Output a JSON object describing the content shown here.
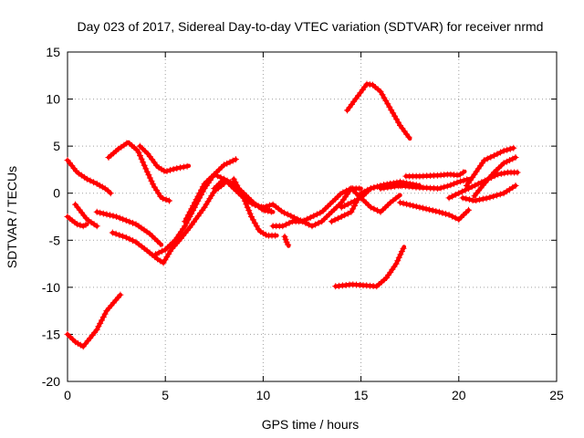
{
  "chart_data": {
    "type": "scatter",
    "title": "Day 023 of 2017, Sidereal Day-to-day VTEC variation (SDTVAR) for receiver nrmd",
    "xlabel": "GPS time / hours",
    "ylabel": "SDTVAR / TECUs",
    "xlim": [
      0,
      25
    ],
    "ylim": [
      -20,
      15
    ],
    "xticks": [
      0,
      5,
      10,
      15,
      20,
      25
    ],
    "yticks": [
      -20,
      -15,
      -10,
      -5,
      0,
      5,
      10,
      15
    ],
    "grid": true,
    "legend": "none",
    "color": "#ff0000",
    "marker": "plus",
    "series": [
      {
        "name": "arc1",
        "x": [
          0,
          0.5,
          1,
          1.5,
          2,
          2.2
        ],
        "y": [
          3.5,
          2.2,
          1.5,
          1.0,
          0.4,
          0
        ]
      },
      {
        "name": "arc2",
        "x": [
          0,
          0.3,
          0.5,
          0.8,
          1.0
        ],
        "y": [
          -2.5,
          -3.0,
          -3.3,
          -3.5,
          -3.3
        ]
      },
      {
        "name": "arc3",
        "x": [
          0,
          0.4,
          0.8,
          1.5,
          2.0,
          2.7
        ],
        "y": [
          -15,
          -15.8,
          -16.3,
          -14.5,
          -12.5,
          -10.8
        ]
      },
      {
        "name": "arc4",
        "x": [
          0.4,
          1.0,
          1.5
        ],
        "y": [
          -1.2,
          -2.8,
          -3.5
        ]
      },
      {
        "name": "arc5",
        "x": [
          1.5,
          2.5,
          3.5,
          4.2,
          4.8
        ],
        "y": [
          -2.0,
          -2.5,
          -3.3,
          -4.3,
          -5.5
        ]
      },
      {
        "name": "arc6",
        "x": [
          2.1,
          2.6,
          3.1,
          3.6,
          4.0,
          4.4,
          4.8,
          5.2
        ],
        "y": [
          3.8,
          4.7,
          5.4,
          4.5,
          2.6,
          0.8,
          -0.5,
          -0.8
        ]
      },
      {
        "name": "arc7",
        "x": [
          3.7,
          4.1,
          4.6,
          5.0,
          5.5,
          6.2
        ],
        "y": [
          5.0,
          4.2,
          2.8,
          2.3,
          2.6,
          2.9
        ]
      },
      {
        "name": "arc8",
        "x": [
          2.3,
          3.0,
          3.5,
          4.0,
          4.6,
          4.9,
          5.3,
          5.8,
          6.3,
          7.0,
          7.5,
          8.0
        ],
        "y": [
          -4.2,
          -4.7,
          -5.2,
          -6.0,
          -7.0,
          -7.4,
          -6.0,
          -4.8,
          -3.5,
          -1.5,
          0.2,
          1.0
        ]
      },
      {
        "name": "arc9",
        "x": [
          4.5,
          5.0,
          5.5,
          6.0,
          6.5,
          7.0,
          7.5,
          8.0,
          8.6
        ],
        "y": [
          -6.5,
          -6.0,
          -5.0,
          -3.5,
          -1.5,
          0.5,
          2.0,
          3.0,
          3.6
        ]
      },
      {
        "name": "arc10",
        "x": [
          6.0,
          6.5,
          7.0,
          7.5,
          8.0,
          8.5,
          9.0,
          9.5,
          10.0,
          10.5
        ],
        "y": [
          -3.0,
          -1.0,
          1.0,
          2.0,
          1.5,
          0.5,
          -0.5,
          -1.2,
          -1.5,
          -2.0
        ]
      },
      {
        "name": "arc11",
        "x": [
          7.5,
          8.0,
          8.5,
          9.0,
          9.5,
          10.0,
          10.5
        ],
        "y": [
          0.5,
          1.5,
          1.0,
          0.0,
          -1.0,
          -1.8,
          -2.0
        ]
      },
      {
        "name": "arc12",
        "x": [
          8.5,
          9.0,
          9.4,
          9.8,
          10.2,
          10.7
        ],
        "y": [
          1.5,
          -0.5,
          -2.5,
          -4.0,
          -4.5,
          -4.5
        ]
      },
      {
        "name": "arc13",
        "x": [
          10.0,
          10.5,
          11.0,
          11.5,
          12.0,
          12.5,
          13.0,
          13.5,
          14.0,
          14.5,
          15.0
        ],
        "y": [
          -1.5,
          -1.2,
          -2.0,
          -2.5,
          -3.0,
          -2.5,
          -2.0,
          -1.0,
          0.0,
          0.5,
          0.5
        ]
      },
      {
        "name": "arc14",
        "x": [
          10.5,
          11.0,
          11.5,
          12.0,
          12.5,
          13.0,
          13.5,
          14.0,
          14.5
        ],
        "y": [
          -3.5,
          -3.5,
          -3.0,
          -3.0,
          -3.5,
          -3.0,
          -2.0,
          -1.0,
          0.5
        ]
      },
      {
        "name": "arc15",
        "x": [
          11.1,
          11.2,
          11.3
        ],
        "y": [
          -4.6,
          -5.2,
          -5.6
        ]
      },
      {
        "name": "arc16",
        "x": [
          13.5,
          14.0,
          14.5,
          15.0,
          15.5,
          16.0,
          16.5,
          17.0
        ],
        "y": [
          -3.0,
          -2.5,
          -2.0,
          0.0,
          0.5,
          0.8,
          1.0,
          0.8
        ]
      },
      {
        "name": "arc17",
        "x": [
          14.0,
          14.5,
          15.0,
          15.5,
          16.0,
          16.5,
          17.0,
          17.5,
          18.0
        ],
        "y": [
          -1.5,
          -1.0,
          -0.5,
          0.5,
          0.8,
          1.0,
          1.2,
          1.0,
          0.8
        ]
      },
      {
        "name": "arc18",
        "x": [
          14.3,
          14.8,
          15.3,
          15.6,
          16.0,
          16.5,
          17.0,
          17.5
        ],
        "y": [
          8.8,
          10.2,
          11.6,
          11.5,
          10.8,
          9.0,
          7.2,
          5.8
        ]
      },
      {
        "name": "arc19",
        "x": [
          13.7,
          14.5,
          15.2,
          15.8,
          16.3,
          16.8,
          17.2
        ],
        "y": [
          -9.9,
          -9.7,
          -9.8,
          -9.9,
          -9.0,
          -7.5,
          -5.7
        ]
      },
      {
        "name": "arc20",
        "x": [
          14.5,
          15.0,
          15.5,
          16.0,
          16.5,
          17.0
        ],
        "y": [
          0.5,
          -0.5,
          -1.5,
          -2.0,
          -1.0,
          -0.2
        ]
      },
      {
        "name": "arc21",
        "x": [
          16.0,
          17.0,
          18.0,
          19.0,
          19.5,
          20.0,
          20.5
        ],
        "y": [
          0.5,
          0.8,
          0.6,
          0.5,
          0.8,
          1.2,
          1.5
        ]
      },
      {
        "name": "arc22",
        "x": [
          17.3,
          18.0,
          19.0,
          19.5,
          20.0,
          20.3
        ],
        "y": [
          1.8,
          1.8,
          1.9,
          2.0,
          1.9,
          2.3
        ]
      },
      {
        "name": "arc23",
        "x": [
          17.0,
          18.0,
          19.0,
          19.5,
          20.0,
          20.5
        ],
        "y": [
          -1.0,
          -1.5,
          -2.0,
          -2.3,
          -2.8,
          -1.8
        ]
      },
      {
        "name": "arc24",
        "x": [
          19.5,
          20.0,
          20.5,
          21.0,
          21.5,
          22.0,
          22.5,
          23.0
        ],
        "y": [
          -0.5,
          0.0,
          0.5,
          1.0,
          1.5,
          2.0,
          2.2,
          2.2
        ]
      },
      {
        "name": "arc25",
        "x": [
          20.4,
          20.8,
          21.3,
          21.8,
          22.3,
          22.8
        ],
        "y": [
          0.8,
          2.0,
          3.5,
          4.0,
          4.5,
          4.8
        ]
      },
      {
        "name": "arc26",
        "x": [
          20.8,
          21.3,
          21.8,
          22.3,
          22.9
        ],
        "y": [
          -0.3,
          1.0,
          2.2,
          3.2,
          3.8
        ]
      },
      {
        "name": "arc27",
        "x": [
          20.2,
          20.8,
          21.5,
          22.3,
          22.9
        ],
        "y": [
          -0.5,
          -0.8,
          -0.5,
          0.0,
          0.8
        ]
      }
    ]
  }
}
